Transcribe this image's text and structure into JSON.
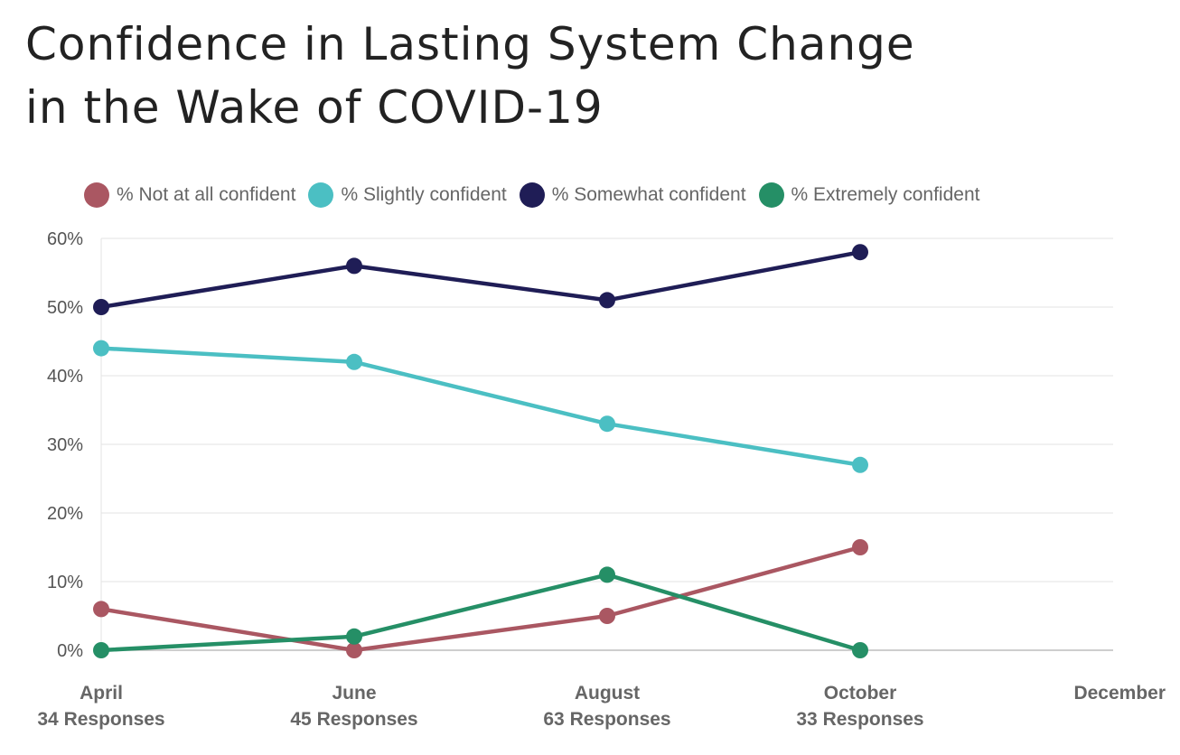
{
  "title_line1": "Confidence in Lasting System Change",
  "title_line2": "in the Wake of COVID-19",
  "chart_data": {
    "type": "line",
    "title": "Confidence in Lasting System Change in the Wake of COVID-19",
    "categories": [
      "April",
      "June",
      "August",
      "October",
      "December"
    ],
    "category_sublabels": [
      "34 Responses",
      "45 Responses",
      "63 Responses",
      "33 Responses",
      ""
    ],
    "y_ticks": [
      "0%",
      "10%",
      "20%",
      "30%",
      "40%",
      "50%",
      "60%"
    ],
    "ylim": [
      0,
      60
    ],
    "grid": true,
    "legend_position": "top",
    "series": [
      {
        "name": "% Not at all confident",
        "color": "#aa5762",
        "values": [
          6,
          0,
          5,
          15,
          null
        ]
      },
      {
        "name": "% Slightly confident",
        "color": "#4bbfc3",
        "values": [
          44,
          42,
          33,
          27,
          null
        ]
      },
      {
        "name": "% Somewhat confident",
        "color": "#1f1d56",
        "values": [
          50,
          56,
          51,
          58,
          null
        ]
      },
      {
        "name": "% Extremely confident",
        "color": "#258f66",
        "values": [
          0,
          2,
          11,
          0,
          null
        ]
      }
    ]
  }
}
